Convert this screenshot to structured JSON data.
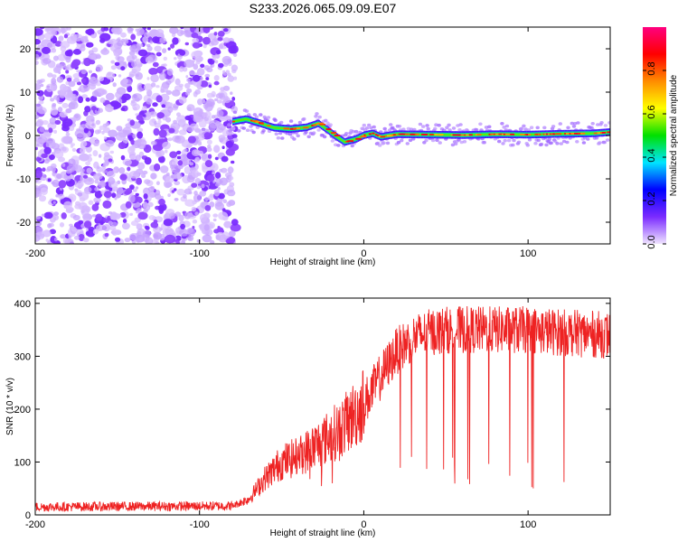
{
  "title": "S233.2026.065.09.09.E07",
  "chart_data": [
    {
      "type": "heatmap",
      "xlabel": "Height of straight line (km)",
      "ylabel": "Frequency (Hz)",
      "xlim": [
        -200,
        150
      ],
      "ylim": [
        -25,
        25
      ],
      "xticks": [
        "-200",
        "-100",
        "0",
        "100"
      ],
      "yticks": [
        "20",
        "10",
        "0",
        "-10",
        "-20"
      ],
      "noise_region_x": [
        -200,
        -78
      ],
      "ridge": {
        "x": [
          -80,
          -72,
          -65,
          -55,
          -45,
          -35,
          -28,
          -22,
          -18,
          -12,
          -5,
          0,
          5,
          10,
          20,
          40,
          60,
          80,
          100,
          120,
          140,
          150
        ],
        "freq": [
          3.2,
          3.8,
          3.0,
          1.8,
          1.5,
          1.9,
          2.8,
          1.2,
          0.0,
          -1.5,
          -0.8,
          0.1,
          0.5,
          -0.3,
          0.3,
          0.2,
          0.1,
          0.3,
          0.2,
          0.4,
          0.5,
          0.8
        ]
      },
      "colorbar": {
        "label": "Normalized spectral amplitude",
        "range": [
          0,
          1
        ],
        "ticks": [
          "0.0",
          "0.2",
          "0.4",
          "0.6",
          "0.8"
        ],
        "colors": [
          "#f0e4ff",
          "#7a2bff",
          "#0000ff",
          "#00e5ff",
          "#00e000",
          "#ffff00",
          "#ff8c00",
          "#ff0000",
          "#ff007f"
        ]
      }
    },
    {
      "type": "line",
      "xlabel": "Height of straight line (km)",
      "ylabel": "SNR (10 * v/v)",
      "xlim": [
        -200,
        150
      ],
      "ylim": [
        0,
        410
      ],
      "xticks": [
        "-200",
        "-100",
        "0",
        "100"
      ],
      "yticks": [
        "400",
        "300",
        "200",
        "100",
        "0"
      ],
      "color": "#ee2222",
      "trend": {
        "x": [
          -200,
          -80,
          -70,
          -60,
          -50,
          -40,
          -30,
          -20,
          -10,
          0,
          10,
          20,
          30,
          40,
          50,
          60,
          80,
          100,
          120,
          150
        ],
        "snr": [
          15,
          17,
          30,
          70,
          100,
          110,
          130,
          150,
          175,
          210,
          260,
          310,
          335,
          345,
          350,
          350,
          350,
          350,
          345,
          340
        ]
      }
    }
  ]
}
